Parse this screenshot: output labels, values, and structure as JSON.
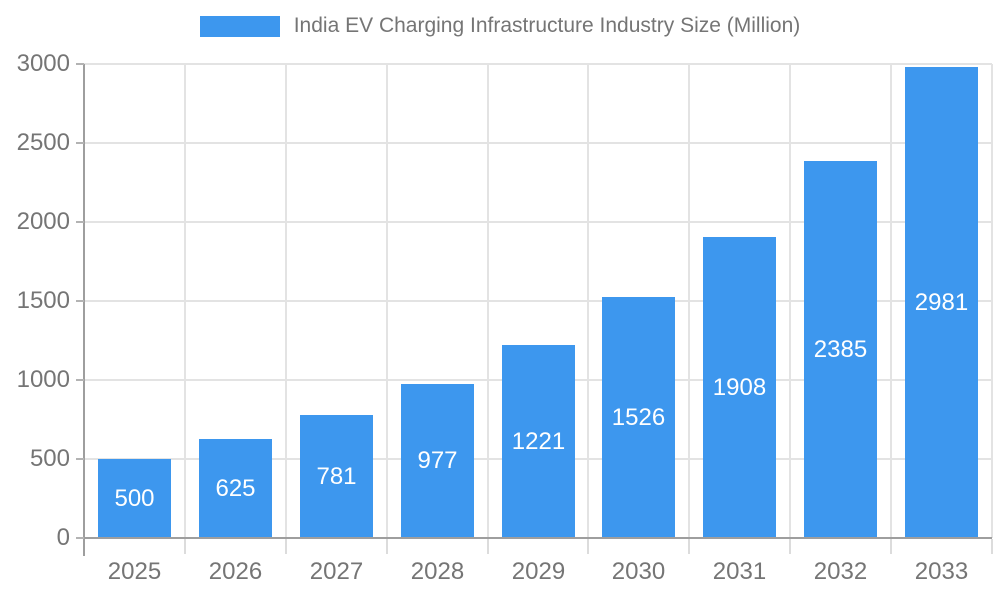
{
  "chart_data": {
    "type": "bar",
    "title": "India EV Charging Infrastructure Industry Size (Million)",
    "categories": [
      "2025",
      "2026",
      "2027",
      "2028",
      "2029",
      "2030",
      "2031",
      "2032",
      "2033"
    ],
    "series": [
      {
        "name": "India EV Charging Infrastructure Industry Size (Million)",
        "values": [
          500,
          625,
          781,
          977,
          1221,
          1526,
          1908,
          2385,
          2981
        ]
      }
    ],
    "value_labels": [
      "500",
      "625",
      "781",
      "977",
      "1221",
      "1526",
      "1908",
      "2385",
      "2981"
    ],
    "xlabel": "",
    "ylabel": "",
    "ylim": [
      0,
      3000
    ],
    "yticks": [
      0,
      500,
      1000,
      1500,
      2000,
      2500,
      3000
    ],
    "ytick_labels": [
      "0",
      "500",
      "1000",
      "1500",
      "2000",
      "2500",
      "3000"
    ],
    "grid": "on",
    "legend_position": "top-center",
    "colors": {
      "bar": "#3D97EE",
      "axis_line": "#9E9E9E",
      "gridline": "#E3E3E3",
      "y_tick": "#B3B3B3",
      "x_tick": "#DCDCDC",
      "axis_label": "#757575",
      "legend_text": "#757575",
      "bar_value_text": "#FFFFFF",
      "background": "#FFFFFF"
    }
  }
}
